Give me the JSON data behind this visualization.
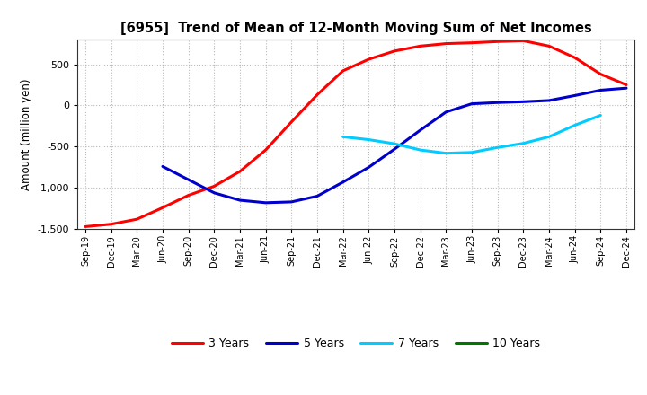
{
  "title": "[6955]  Trend of Mean of 12-Month Moving Sum of Net Incomes",
  "ylabel": "Amount (million yen)",
  "ylim": [
    -1500,
    800
  ],
  "yticks": [
    -1500,
    -1000,
    -500,
    0,
    500
  ],
  "background_color": "#ffffff",
  "grid_color": "#bbbbbb",
  "legend_entries": [
    "3 Years",
    "5 Years",
    "7 Years",
    "10 Years"
  ],
  "legend_colors": [
    "#ff0000",
    "#0000cc",
    "#00ccff",
    "#007700"
  ],
  "x_labels": [
    "Sep-19",
    "Dec-19",
    "Mar-20",
    "Jun-20",
    "Sep-20",
    "Dec-20",
    "Mar-21",
    "Jun-21",
    "Sep-21",
    "Dec-21",
    "Mar-22",
    "Jun-22",
    "Sep-22",
    "Dec-22",
    "Mar-23",
    "Jun-23",
    "Sep-23",
    "Dec-23",
    "Mar-24",
    "Jun-24",
    "Sep-24",
    "Dec-24"
  ],
  "series_3y": [
    -1470,
    -1440,
    -1380,
    -1240,
    -1090,
    -980,
    -800,
    -540,
    -200,
    130,
    420,
    560,
    660,
    720,
    750,
    760,
    775,
    785,
    720,
    580,
    380,
    250
  ],
  "series_5y": [
    null,
    null,
    null,
    -740,
    -900,
    -1060,
    -1150,
    -1180,
    -1170,
    -1100,
    -930,
    -750,
    -530,
    -300,
    -80,
    20,
    35,
    45,
    60,
    120,
    185,
    210
  ],
  "series_7y": [
    null,
    null,
    null,
    null,
    null,
    null,
    null,
    null,
    null,
    null,
    -380,
    -415,
    -465,
    -540,
    -580,
    -570,
    -510,
    -460,
    -380,
    -240,
    -120,
    null
  ],
  "series_10y": [
    null,
    null,
    null,
    null,
    null,
    null,
    null,
    null,
    null,
    null,
    null,
    null,
    null,
    null,
    null,
    null,
    null,
    null,
    null,
    null,
    null,
    null
  ]
}
